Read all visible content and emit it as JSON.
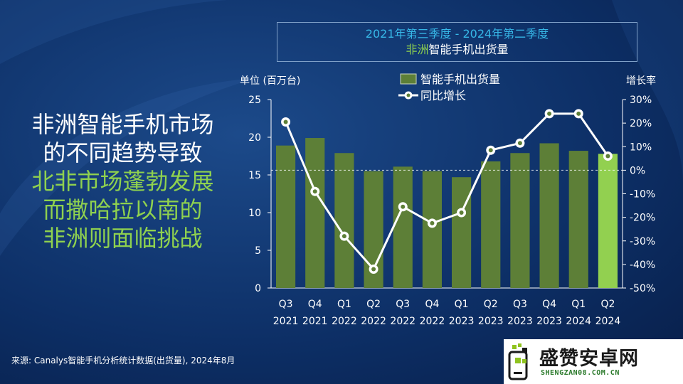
{
  "headline": {
    "line1": "非洲智能手机市场",
    "line2": "的不同趋势导致",
    "line3": "北非市场蓬勃发展",
    "line4": "而撒哈拉以南的",
    "line5": "非洲则面临挑战"
  },
  "source": "来源: Canalys智能手机分析统计数据(出货量), 2024年8月",
  "watermark": {
    "name": "盛赞安卓网",
    "url": "SHENGZAN08.COM.CN"
  },
  "colors": {
    "background": "#0b2a5e",
    "bar": "#5d7f37",
    "bar_highlight": "#92d050",
    "line": "#ffffff",
    "headline_accent": "#8fd14f",
    "title_accent": "#37b8e8"
  },
  "chart_data": {
    "type": "bar",
    "title_line1": "2021年第三季度 - 2024年第二季度",
    "title_line2_accent": "非洲",
    "title_line2_rest": "智能手机出货量",
    "ylabel": "单位 (百万台)",
    "ylabel_right": "增长率",
    "ylim": [
      0,
      25
    ],
    "yticks": [
      "0",
      "5",
      "10",
      "15",
      "20",
      "25"
    ],
    "ylim_right": [
      -50,
      30
    ],
    "yticks_right": [
      "-50%",
      "-40%",
      "-30%",
      "-20%",
      "-10%",
      "0%",
      "10%",
      "20%",
      "30%"
    ],
    "legend": {
      "position": "top",
      "bar_label": "智能手机出货量",
      "line_label": "同比增长"
    },
    "categories": [
      [
        "Q3",
        "2021"
      ],
      [
        "Q4",
        "2021"
      ],
      [
        "Q1",
        "2022"
      ],
      [
        "Q2",
        "2022"
      ],
      [
        "Q3",
        "2022"
      ],
      [
        "Q4",
        "2022"
      ],
      [
        "Q1",
        "2023"
      ],
      [
        "Q2",
        "2023"
      ],
      [
        "Q3",
        "2023"
      ],
      [
        "Q4",
        "2023"
      ],
      [
        "Q1",
        "2024"
      ],
      [
        "Q2",
        "2024"
      ]
    ],
    "series": [
      {
        "name": "智能手机出货量",
        "type": "bar",
        "axis": "left",
        "values": [
          18.9,
          19.9,
          17.9,
          15.5,
          16.1,
          15.5,
          14.7,
          16.8,
          17.9,
          19.2,
          18.2,
          17.8
        ],
        "highlight_last": true
      },
      {
        "name": "同比增长",
        "type": "line",
        "axis": "right",
        "values": [
          20.5,
          -9,
          -28,
          -42,
          -15.5,
          -22.5,
          -18,
          8.5,
          11.5,
          24,
          24,
          6
        ]
      }
    ]
  }
}
